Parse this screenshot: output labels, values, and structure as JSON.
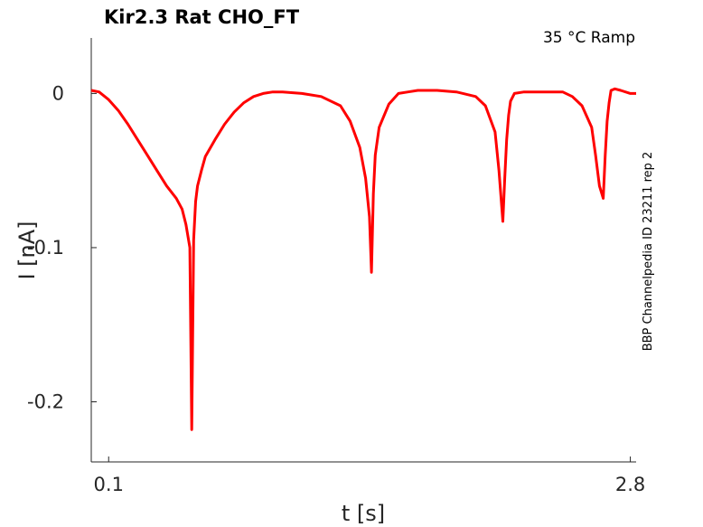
{
  "chart_data": {
    "type": "line",
    "title": "Kir2.3  Rat  CHO_FT",
    "condition": "35 °C  Ramp",
    "xlabel": "t [s]",
    "ylabel": "I [nA]",
    "side_label": "BBP Channelpedia ID 23211 rep 2",
    "x_ticks": [
      {
        "value": 0.1,
        "label": "0.1"
      },
      {
        "value": 2.8,
        "label": "2.8"
      }
    ],
    "y_ticks": [
      {
        "value": 0,
        "label": "0"
      },
      {
        "value": -0.1,
        "label": "-0.1"
      },
      {
        "value": -0.2,
        "label": "-0.2"
      }
    ],
    "xlim": [
      0.01,
      2.83
    ],
    "ylim": [
      -0.239,
      0.036
    ],
    "grid": false,
    "series_color": "#ff0000",
    "series": [
      {
        "x": [
          0.01,
          0.05,
          0.1,
          0.15,
          0.2,
          0.25,
          0.3,
          0.35,
          0.4,
          0.45,
          0.48,
          0.5,
          0.52,
          0.53,
          0.54,
          0.55,
          0.56,
          0.58,
          0.6,
          0.65,
          0.7,
          0.75,
          0.8,
          0.85,
          0.9,
          0.95,
          1.0,
          1.1,
          1.2,
          1.3,
          1.35,
          1.4,
          1.43,
          1.45,
          1.46,
          1.47,
          1.48,
          1.5,
          1.55,
          1.6,
          1.65,
          1.7,
          1.8,
          1.9,
          2.0,
          2.05,
          2.1,
          2.12,
          2.14,
          2.15,
          2.16,
          2.17,
          2.18,
          2.2,
          2.25,
          2.3,
          2.35,
          2.4,
          2.45,
          2.5,
          2.55,
          2.6,
          2.62,
          2.64,
          2.66,
          2.67,
          2.68,
          2.69,
          2.7,
          2.72,
          2.75,
          2.8,
          2.83
        ],
        "y": [
          0.002,
          0.001,
          -0.004,
          -0.011,
          -0.02,
          -0.03,
          -0.04,
          -0.05,
          -0.06,
          -0.068,
          -0.075,
          -0.085,
          -0.1,
          -0.218,
          -0.095,
          -0.07,
          -0.06,
          -0.05,
          -0.041,
          -0.03,
          -0.02,
          -0.012,
          -0.006,
          -0.002,
          0.0,
          0.001,
          0.001,
          0.0,
          -0.002,
          -0.008,
          -0.018,
          -0.035,
          -0.055,
          -0.08,
          -0.116,
          -0.065,
          -0.04,
          -0.022,
          -0.007,
          0.0,
          0.001,
          0.002,
          0.002,
          0.001,
          -0.002,
          -0.008,
          -0.025,
          -0.05,
          -0.083,
          -0.055,
          -0.03,
          -0.014,
          -0.005,
          0.0,
          0.001,
          0.001,
          0.001,
          0.001,
          0.001,
          -0.002,
          -0.008,
          -0.022,
          -0.04,
          -0.06,
          -0.068,
          -0.04,
          -0.018,
          -0.006,
          0.002,
          0.003,
          0.002,
          0.0,
          0.0
        ]
      }
    ]
  }
}
